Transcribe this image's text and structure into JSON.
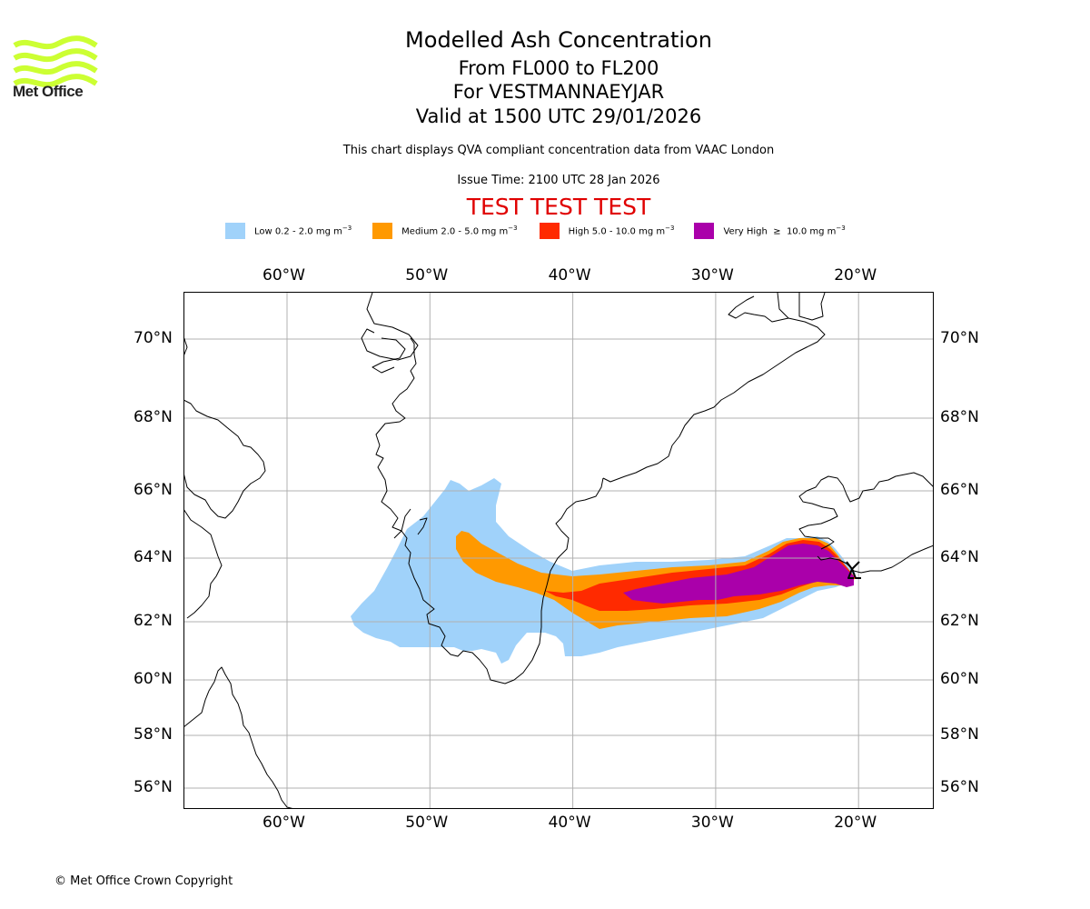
{
  "logo": {
    "text": "Met Office",
    "color": "#ccff33"
  },
  "header": {
    "title": "Modelled Ash Concentration",
    "levels": "From FL000 to FL200",
    "volcano": "For VESTMANNAEYJAR",
    "valid": "Valid at 1500 UTC 29/01/2026",
    "description": "This chart displays QVA compliant concentration data from VAAC London",
    "issue_time": "Issue Time: 2100 UTC 28 Jan 2026",
    "test_banner": "TEST TEST TEST",
    "test_color": "#e00000"
  },
  "legend": [
    {
      "name": "Low",
      "label": "Low 0.2 - 2.0 mg m",
      "exp": "−3",
      "color": "#a0d2fa"
    },
    {
      "name": "Medium",
      "label": "Medium 2.0 - 5.0 mg m",
      "exp": "−3",
      "color": "#ff9900"
    },
    {
      "name": "High",
      "label": "High 5.0 - 10.0 mg m",
      "exp": "−3",
      "color": "#ff2a00"
    },
    {
      "name": "Very High",
      "label": "Very High  ≥  10.0 mg m",
      "exp": "−3",
      "color": "#aa00aa"
    }
  ],
  "map": {
    "lon_ticks": [
      {
        "value": -60,
        "label": "60°W"
      },
      {
        "value": -50,
        "label": "50°W"
      },
      {
        "value": -40,
        "label": "40°W"
      },
      {
        "value": -30,
        "label": "30°W"
      },
      {
        "value": -20,
        "label": "20°W"
      }
    ],
    "lat_ticks": [
      {
        "value": 70,
        "label": "70°N"
      },
      {
        "value": 68,
        "label": "68°N"
      },
      {
        "value": 66,
        "label": "66°N"
      },
      {
        "value": 64,
        "label": "64°N"
      },
      {
        "value": 62,
        "label": "62°N"
      },
      {
        "value": 60,
        "label": "60°N"
      },
      {
        "value": 58,
        "label": "58°N"
      },
      {
        "value": 56,
        "label": "56°N"
      }
    ],
    "gridline_color": "#b0b0b0",
    "coastline_color": "#000000"
  },
  "footer": {
    "copyright": "© Met Office Crown Copyright"
  }
}
